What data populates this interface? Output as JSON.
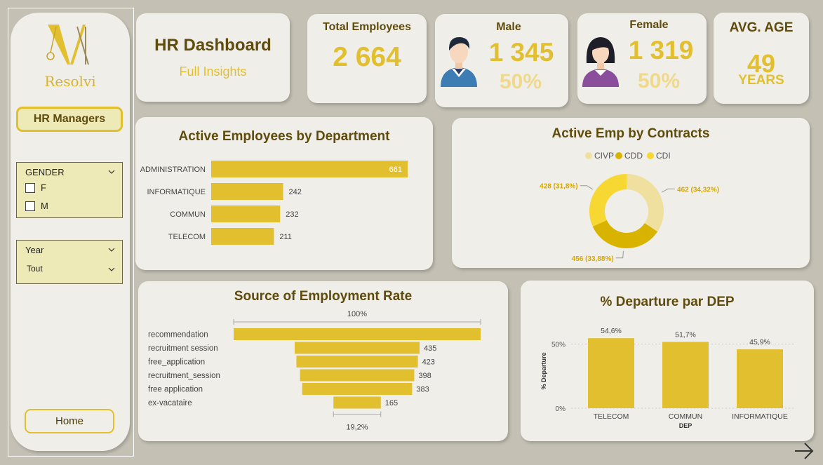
{
  "sidebar": {
    "logo_text": "Resolvi",
    "hr_managers_label": "HR Managers",
    "gender_slicer": {
      "title": "GENDER",
      "options": [
        "F",
        "M"
      ]
    },
    "year_slicer": {
      "title": "Year",
      "selected": "Tout"
    },
    "home_label": "Home"
  },
  "header": {
    "title": "HR Dashboard",
    "subtitle": "Full Insights"
  },
  "kpis": {
    "total": {
      "label": "Total Employees",
      "value": "2 664"
    },
    "male": {
      "label": "Male",
      "value": "1 345",
      "pct": "50%"
    },
    "female": {
      "label": "Female",
      "value": "1 319",
      "pct": "50%"
    },
    "age": {
      "label": "AVG. AGE",
      "value": "49",
      "unit": "YEARS"
    }
  },
  "colors": {
    "accent": "#e2bf2e",
    "title": "#5f4b0b",
    "card": "#efeee9",
    "background": "#c4c0b4"
  },
  "chart_data": [
    {
      "type": "bar",
      "orientation": "horizontal",
      "title": "Active Employees by Department",
      "categories": [
        "ADMINISTRATION",
        "INFORMATIQUE",
        "COMMUN",
        "TELECOM"
      ],
      "values": [
        661,
        242,
        232,
        211
      ]
    },
    {
      "type": "pie",
      "variant": "donut",
      "title": "Active Emp by Contracts",
      "legend": [
        "CIVP",
        "CDD",
        "CDI"
      ],
      "legend_position": "top",
      "slices": [
        {
          "name": "CIVP",
          "value": 462,
          "label": "462 (34,32%)",
          "color": "#f0e0a0"
        },
        {
          "name": "CDD",
          "value": 456,
          "label": "456 (33,88%)",
          "color": "#d8b400"
        },
        {
          "name": "CDI",
          "value": 428,
          "label": "428 (31,8%)",
          "color": "#f7d832"
        }
      ]
    },
    {
      "type": "bar",
      "variant": "funnel",
      "title": "Source of Employment Rate",
      "top_label": "100%",
      "bottom_label": "19,2%",
      "categories": [
        "recommendation",
        "recruitment session",
        "free_application",
        "recruitment_session",
        "free application",
        "ex-vacataire"
      ],
      "values": [
        860,
        435,
        423,
        398,
        383,
        165
      ],
      "value_labels": [
        "",
        "435",
        "423",
        "398",
        "383",
        "165"
      ]
    },
    {
      "type": "bar",
      "title": "% Departure par DEP",
      "xlabel": "DEP",
      "ylabel": "% Departure",
      "categories": [
        "TELECOM",
        "COMMUN",
        "INFORMATIQUE"
      ],
      "values": [
        54.6,
        51.7,
        45.9
      ],
      "value_labels": [
        "54,6%",
        "51,7%",
        "45,9%"
      ],
      "yticks": [
        "0%",
        "50%"
      ],
      "ylim": [
        0,
        58
      ]
    }
  ]
}
